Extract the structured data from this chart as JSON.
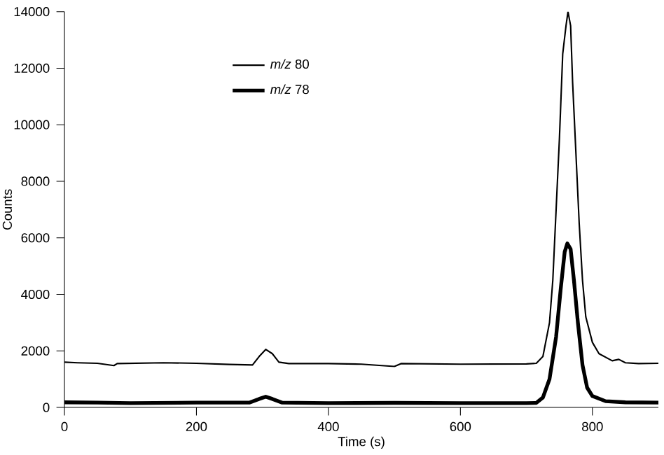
{
  "chart_data": {
    "type": "line",
    "xlabel": "Time (s)",
    "ylabel": "Counts",
    "xlim": [
      0,
      900
    ],
    "xticks": [
      0,
      200,
      400,
      600,
      800
    ],
    "ylim": [
      0,
      14000
    ],
    "yticks": [
      0,
      2000,
      4000,
      6000,
      8000,
      10000,
      12000,
      14000
    ],
    "grid": false,
    "legend": "top left",
    "marker": "none",
    "line_style": "solid",
    "series": [
      {
        "name": "*m/z* 80",
        "color": "#000000",
        "x": [
          0,
          20,
          50,
          75,
          80,
          150,
          200,
          250,
          285,
          295,
          305,
          315,
          325,
          340,
          400,
          450,
          500,
          510,
          600,
          700,
          715,
          725,
          735,
          740,
          745,
          750,
          755,
          760,
          763,
          767,
          770,
          775,
          780,
          785,
          790,
          800,
          810,
          830,
          840,
          850,
          870,
          900
        ],
        "values": [
          1600,
          1580,
          1560,
          1480,
          1550,
          1580,
          1560,
          1520,
          1500,
          1800,
          2050,
          1900,
          1600,
          1550,
          1550,
          1530,
          1450,
          1550,
          1530,
          1540,
          1560,
          1800,
          3000,
          4500,
          7000,
          9500,
          12500,
          13500,
          14000,
          13500,
          11500,
          9000,
          6500,
          4500,
          3200,
          2300,
          1900,
          1650,
          1700,
          1580,
          1550,
          1560
        ]
      },
      {
        "name": "*m/z* 78",
        "color": "#000000",
        "x": [
          0,
          50,
          100,
          200,
          280,
          295,
          305,
          315,
          330,
          400,
          500,
          600,
          700,
          715,
          725,
          735,
          745,
          752,
          758,
          762,
          767,
          772,
          778,
          785,
          792,
          800,
          820,
          850,
          900
        ],
        "values": [
          180,
          170,
          150,
          170,
          170,
          300,
          380,
          300,
          170,
          150,
          160,
          150,
          150,
          160,
          350,
          1000,
          2500,
          4200,
          5500,
          5800,
          5600,
          4500,
          3000,
          1500,
          700,
          400,
          220,
          180,
          170
        ]
      }
    ]
  }
}
